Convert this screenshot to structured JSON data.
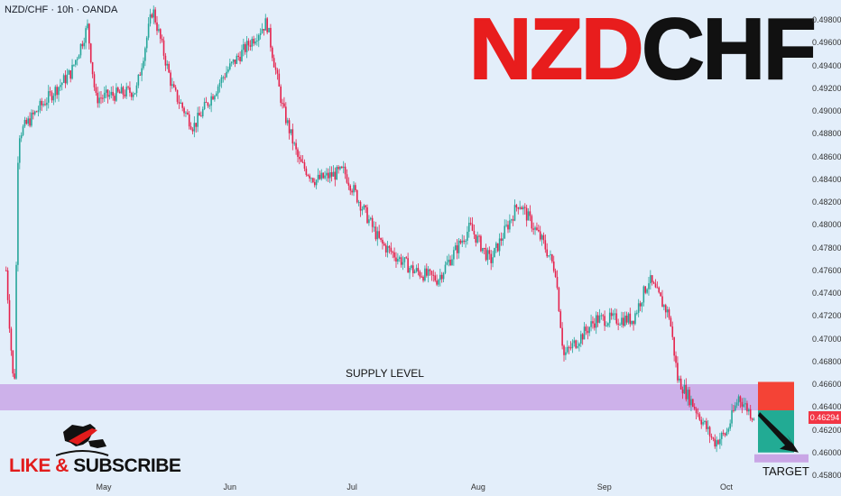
{
  "symbol_label": "NZD/CHF · 10h · OANDA",
  "title": {
    "part1": "NZD",
    "part2": "CHF"
  },
  "supply_label": "SUPPLY LEVEL",
  "target_label": "TARGET",
  "subscribe": {
    "like": "LIKE &",
    "subscribe": "SUBSCRIBE"
  },
  "current_price": "0.46294",
  "colors": {
    "up": "#26a69a",
    "down": "#e5224c",
    "supply": "#c9a6e6",
    "stop": "#f44336",
    "profit": "#22ab94",
    "background": "#e3eefa"
  },
  "chart_data": {
    "type": "candlestick",
    "title": "NZDCHF",
    "timeframe": "10h",
    "ylim": [
      0.458,
      0.498
    ],
    "y_ticks": [
      "0.49800",
      "0.49600",
      "0.49400",
      "0.49200",
      "0.49000",
      "0.48800",
      "0.48600",
      "0.48400",
      "0.48200",
      "0.48000",
      "0.47800",
      "0.47600",
      "0.47400",
      "0.47200",
      "0.47000",
      "0.46800",
      "0.46600",
      "0.46400",
      "0.46200",
      "0.46000",
      "0.45800"
    ],
    "x_ticks": [
      {
        "label": "May",
        "date": "2024-05-01"
      },
      {
        "label": "Jun",
        "date": "2024-06-01"
      },
      {
        "label": "Jul",
        "date": "2024-07-01"
      },
      {
        "label": "Aug",
        "date": "2024-08-01"
      },
      {
        "label": "Sep",
        "date": "2024-09-01"
      },
      {
        "label": "Oct",
        "date": "2024-10-01"
      }
    ],
    "close_path": [
      [
        "2024-04-07",
        0.476
      ],
      [
        "2024-04-09",
        0.4649
      ],
      [
        "2024-04-10",
        0.4879
      ],
      [
        "2024-04-15",
        0.4902
      ],
      [
        "2024-04-23",
        0.4934
      ],
      [
        "2024-04-27",
        0.4974
      ],
      [
        "2024-04-29",
        0.4911
      ],
      [
        "2024-05-09",
        0.4918
      ],
      [
        "2024-05-13",
        0.499
      ],
      [
        "2024-05-18",
        0.4918
      ],
      [
        "2024-05-23",
        0.4886
      ],
      [
        "2024-05-31",
        0.4934
      ],
      [
        "2024-06-10",
        0.4978
      ],
      [
        "2024-06-14",
        0.4902
      ],
      [
        "2024-06-18",
        0.4855
      ],
      [
        "2024-06-22",
        0.4839
      ],
      [
        "2024-06-29",
        0.4847
      ],
      [
        "2024-07-08",
        0.4784
      ],
      [
        "2024-07-16",
        0.476
      ],
      [
        "2024-07-22",
        0.4752
      ],
      [
        "2024-07-30",
        0.4798
      ],
      [
        "2024-08-04",
        0.4768
      ],
      [
        "2024-08-11",
        0.482
      ],
      [
        "2024-08-17",
        0.4784
      ],
      [
        "2024-08-20",
        0.476
      ],
      [
        "2024-08-22",
        0.4685
      ],
      [
        "2024-08-30",
        0.4717
      ],
      [
        "2024-09-08",
        0.4717
      ],
      [
        "2024-09-12",
        0.4752
      ],
      [
        "2024-09-17",
        0.472
      ],
      [
        "2024-09-19",
        0.4665
      ],
      [
        "2024-09-23",
        0.4641
      ],
      [
        "2024-09-28",
        0.4609
      ],
      [
        "2024-10-01",
        0.4617
      ],
      [
        "2024-10-04",
        0.4649
      ],
      [
        "2024-10-08",
        0.46294
      ]
    ],
    "supply_zone": [
      0.4637,
      0.466
    ],
    "trade": {
      "stop": 0.4662,
      "entry": 0.4637,
      "target": 0.46
    }
  }
}
